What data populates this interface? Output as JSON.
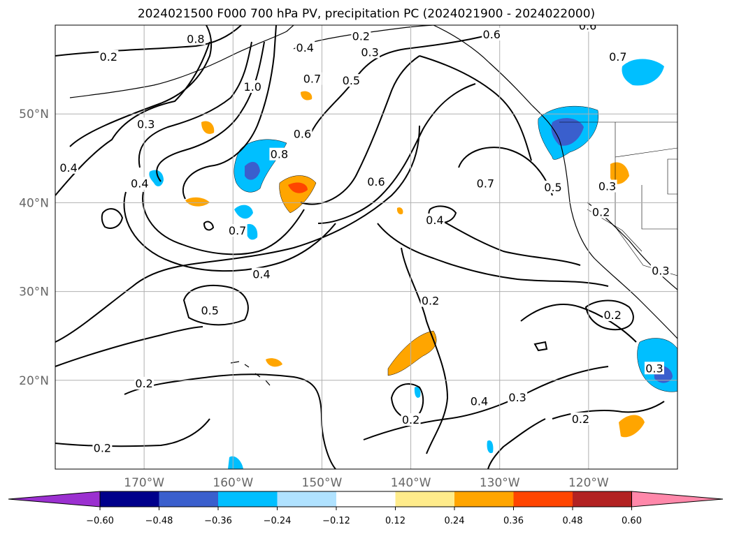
{
  "title": "2024021500 F000 700 hPa PV, precipitation PC (2024021900 - 2024022000)",
  "lon_ticks": [
    "170°W",
    "160°W",
    "150°W",
    "140°W",
    "130°W",
    "120°W"
  ],
  "lat_ticks": [
    "50°N",
    "40°N",
    "30°N",
    "20°N"
  ],
  "colorbar": {
    "ticks": [
      "−0.60",
      "−0.48",
      "−0.36",
      "−0.24",
      "−0.12",
      "0.12",
      "0.24",
      "0.36",
      "0.48",
      "0.60"
    ],
    "colors": [
      "#9b30d0",
      "#00008b",
      "#3a5fcd",
      "#00bfff",
      "#b0e2ff",
      "#ffffff",
      "#ffec8b",
      "#ffa500",
      "#ff4500",
      "#b22222",
      "#ff88aa"
    ]
  },
  "contour_labels": [
    {
      "text": "0.2",
      "lon": -174.0,
      "lat": 56.4
    },
    {
      "text": "0.3",
      "lon": -169.8,
      "lat": 48.8
    },
    {
      "text": "0.4",
      "lon": -178.5,
      "lat": 43.9
    },
    {
      "text": "0.4",
      "lon": -170.5,
      "lat": 42.1
    },
    {
      "text": "0.8",
      "lon": -164.2,
      "lat": 58.4
    },
    {
      "text": "1.0",
      "lon": -157.8,
      "lat": 53.0
    },
    {
      "text": "0.4",
      "lon": -151.9,
      "lat": 57.4
    },
    {
      "text": "0.7",
      "lon": -151.1,
      "lat": 53.9
    },
    {
      "text": "0.2",
      "lon": -145.6,
      "lat": 58.7
    },
    {
      "text": "0.3",
      "lon": -144.6,
      "lat": 56.9
    },
    {
      "text": "0.5",
      "lon": -146.7,
      "lat": 53.7
    },
    {
      "text": "0.6",
      "lon": -130.9,
      "lat": 58.9
    },
    {
      "text": "0.6",
      "lon": -120.1,
      "lat": 59.9
    },
    {
      "text": "0.7",
      "lon": -116.7,
      "lat": 56.4
    },
    {
      "text": "0.6",
      "lon": -152.2,
      "lat": 47.7
    },
    {
      "text": "0.8",
      "lon": -154.8,
      "lat": 45.4
    },
    {
      "text": "0.6",
      "lon": -143.9,
      "lat": 42.3
    },
    {
      "text": "0.7",
      "lon": -131.6,
      "lat": 42.1
    },
    {
      "text": "0.5",
      "lon": -124.0,
      "lat": 41.7
    },
    {
      "text": "0.3",
      "lon": -117.9,
      "lat": 41.8
    },
    {
      "text": "0.2",
      "lon": -118.6,
      "lat": 38.9
    },
    {
      "text": "0.4",
      "lon": -137.3,
      "lat": 38.0
    },
    {
      "text": "0.7",
      "lon": -159.5,
      "lat": 36.8
    },
    {
      "text": "0.4",
      "lon": -156.8,
      "lat": 31.9
    },
    {
      "text": "0.5",
      "lon": -162.6,
      "lat": 27.8
    },
    {
      "text": "0.2",
      "lon": -137.8,
      "lat": 28.9
    },
    {
      "text": "0.3",
      "lon": -111.9,
      "lat": 32.3
    },
    {
      "text": "0.2",
      "lon": -117.3,
      "lat": 27.3
    },
    {
      "text": "0.3",
      "lon": -112.6,
      "lat": 21.3
    },
    {
      "text": "0.2",
      "lon": -170.0,
      "lat": 19.6
    },
    {
      "text": "0.2",
      "lon": -140.0,
      "lat": 15.5
    },
    {
      "text": "0.4",
      "lon": -132.3,
      "lat": 17.6
    },
    {
      "text": "0.3",
      "lon": -128.0,
      "lat": 18.0
    },
    {
      "text": "0.2",
      "lon": -120.9,
      "lat": 15.6
    },
    {
      "text": "0.2",
      "lon": -174.7,
      "lat": 12.3
    }
  ]
}
